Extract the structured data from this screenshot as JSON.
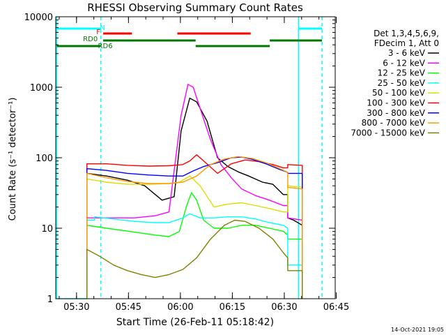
{
  "chart_data": {
    "type": "line",
    "title": "RHESSI Observing Summary Count Rates",
    "xlabel": "Start Time (26-Feb-11 05:18:42)",
    "ylabel": "Count Rate (s⁻¹ detector⁻¹)",
    "yscale": "log",
    "ylim": [
      1,
      10000
    ],
    "xlim_minutes": [
      5.3,
      86.0
    ],
    "x_ticks": [
      {
        "label": "05:30",
        "min": 11.3
      },
      {
        "label": "05:45",
        "min": 26.3
      },
      {
        "label": "06:00",
        "min": 41.3
      },
      {
        "label": "06:15",
        "min": 56.3
      },
      {
        "label": "06:30",
        "min": 71.3
      },
      {
        "label": "06:45",
        "min": 86.3
      }
    ],
    "y_ticks": [
      {
        "label": "1",
        "value": 1
      },
      {
        "label": "10",
        "value": 10
      },
      {
        "label": "100",
        "value": 100
      },
      {
        "label": "1000",
        "value": 1000
      },
      {
        "label": "10000",
        "value": 10000
      }
    ],
    "legend_header": [
      "Det 1,3,4,5,6,9,",
      "FDecim 1, Att 0"
    ],
    "legend_position": "right",
    "footer": "14-Oct-2021 19:05",
    "series": [
      {
        "name": "3 - 6 keV",
        "color": "#000000",
        "points": [
          [
            14.3,
            1
          ],
          [
            14.3,
            60
          ],
          [
            20,
            55
          ],
          [
            26,
            48
          ],
          [
            31,
            40
          ],
          [
            36,
            25
          ],
          [
            39.5,
            28
          ],
          [
            41.5,
            240
          ],
          [
            44,
            700
          ],
          [
            46,
            620
          ],
          [
            49,
            330
          ],
          [
            52,
            100
          ],
          [
            55,
            75
          ],
          [
            58,
            63
          ],
          [
            61,
            55
          ],
          [
            65,
            45
          ],
          [
            68,
            42
          ],
          [
            71,
            30
          ],
          [
            72.3,
            30
          ],
          [
            72.3,
            14
          ],
          [
            74,
            13
          ],
          [
            76.5,
            11
          ],
          [
            76.5,
            1
          ]
        ]
      },
      {
        "name": "6 - 12 keV",
        "color": "#ff00ff",
        "points": [
          [
            14.3,
            1
          ],
          [
            14.3,
            14
          ],
          [
            20,
            14
          ],
          [
            28,
            14
          ],
          [
            34,
            15
          ],
          [
            38,
            17
          ],
          [
            41.5,
            400
          ],
          [
            43.5,
            1100
          ],
          [
            45,
            1000
          ],
          [
            47,
            500
          ],
          [
            50,
            180
          ],
          [
            53,
            80
          ],
          [
            56,
            52
          ],
          [
            59,
            36
          ],
          [
            63,
            29
          ],
          [
            67,
            25
          ],
          [
            71,
            21
          ],
          [
            72.3,
            21
          ],
          [
            72.3,
            14
          ],
          [
            76.5,
            13
          ],
          [
            76.5,
            1
          ]
        ]
      },
      {
        "name": "12 - 25 keV",
        "color": "#00ff00",
        "points": [
          [
            14.3,
            1
          ],
          [
            14.3,
            11
          ],
          [
            20,
            10
          ],
          [
            28,
            8.8
          ],
          [
            34,
            8
          ],
          [
            38,
            7.6
          ],
          [
            41,
            9
          ],
          [
            43,
            20
          ],
          [
            44.5,
            32
          ],
          [
            46,
            25
          ],
          [
            48,
            13
          ],
          [
            51,
            10
          ],
          [
            55,
            10
          ],
          [
            59,
            11
          ],
          [
            63,
            11
          ],
          [
            67,
            10
          ],
          [
            71,
            9
          ],
          [
            72.3,
            8
          ],
          [
            72.3,
            7
          ],
          [
            76.5,
            7
          ],
          [
            76.5,
            1
          ]
        ]
      },
      {
        "name": "25 - 50 keV",
        "color": "#00ffff",
        "points": [
          [
            5.5,
            1
          ],
          [
            5.5,
            1
          ],
          [
            14.3,
            1
          ],
          [
            14.3,
            13
          ],
          [
            16.5,
            13
          ],
          [
            16.5,
            14.5
          ],
          [
            22,
            13.5
          ],
          [
            28,
            12.5
          ],
          [
            34,
            12
          ],
          [
            38,
            12
          ],
          [
            42,
            14
          ],
          [
            44,
            16
          ],
          [
            47,
            14
          ],
          [
            51,
            14
          ],
          [
            55,
            14.5
          ],
          [
            59,
            14.5
          ],
          [
            63,
            13.5
          ],
          [
            67,
            12
          ],
          [
            71,
            11
          ],
          [
            72.3,
            10
          ],
          [
            72.3,
            3
          ],
          [
            76.5,
            3
          ],
          [
            76.5,
            1
          ]
        ]
      },
      {
        "name": "50 - 100 keV",
        "color": "#dddd00",
        "points": [
          [
            14.3,
            1
          ],
          [
            14.3,
            50
          ],
          [
            20,
            45
          ],
          [
            26,
            42
          ],
          [
            32,
            42
          ],
          [
            38,
            43
          ],
          [
            41,
            45
          ],
          [
            44,
            55
          ],
          [
            47,
            40
          ],
          [
            51,
            20
          ],
          [
            55,
            22
          ],
          [
            59,
            23
          ],
          [
            63,
            21
          ],
          [
            67,
            19
          ],
          [
            71,
            17
          ],
          [
            72.3,
            17
          ],
          [
            72.3,
            40
          ],
          [
            76.5,
            38
          ],
          [
            76.5,
            1
          ]
        ]
      },
      {
        "name": "100 - 300 keV",
        "color": "#ff0000",
        "points": [
          [
            14.3,
            1
          ],
          [
            14.3,
            82
          ],
          [
            20,
            82
          ],
          [
            26,
            78
          ],
          [
            32,
            76
          ],
          [
            38,
            77
          ],
          [
            42,
            80
          ],
          [
            44,
            90
          ],
          [
            46,
            110
          ],
          [
            48,
            90
          ],
          [
            52,
            60
          ],
          [
            56,
            82
          ],
          [
            60,
            93
          ],
          [
            64,
            88
          ],
          [
            68,
            80
          ],
          [
            71,
            72
          ],
          [
            72.3,
            72
          ],
          [
            72.3,
            80
          ],
          [
            76.5,
            78
          ],
          [
            76.5,
            1
          ]
        ]
      },
      {
        "name": "300 - 800 keV",
        "color": "#0000ff",
        "points": [
          [
            14.3,
            1
          ],
          [
            14.3,
            70
          ],
          [
            20,
            66
          ],
          [
            26,
            60
          ],
          [
            32,
            57
          ],
          [
            38,
            55
          ],
          [
            42,
            55
          ],
          [
            45,
            65
          ],
          [
            48,
            75
          ],
          [
            52,
            85
          ],
          [
            56,
            100
          ],
          [
            59,
            102
          ],
          [
            62,
            95
          ],
          [
            66,
            82
          ],
          [
            70,
            68
          ],
          [
            72.3,
            62
          ],
          [
            72.3,
            60
          ],
          [
            76.5,
            60
          ],
          [
            76.5,
            1
          ]
        ]
      },
      {
        "name": "800 - 7000 keV",
        "color": "#ff9900",
        "points": [
          [
            14.3,
            1
          ],
          [
            14.3,
            60
          ],
          [
            20,
            52
          ],
          [
            26,
            46
          ],
          [
            32,
            43
          ],
          [
            38,
            43
          ],
          [
            42,
            45
          ],
          [
            46,
            55
          ],
          [
            50,
            80
          ],
          [
            54,
            96
          ],
          [
            58,
            104
          ],
          [
            62,
            98
          ],
          [
            66,
            85
          ],
          [
            70,
            70
          ],
          [
            72.3,
            62
          ],
          [
            72.3,
            38
          ],
          [
            76.5,
            36
          ],
          [
            76.5,
            1
          ]
        ]
      },
      {
        "name": "7000 - 15000 keV",
        "color": "#808000",
        "points": [
          [
            14.3,
            1
          ],
          [
            14.3,
            5
          ],
          [
            18,
            4
          ],
          [
            22,
            3
          ],
          [
            26,
            2.5
          ],
          [
            30,
            2.2
          ],
          [
            34,
            2
          ],
          [
            38,
            2.2
          ],
          [
            42,
            2.6
          ],
          [
            46,
            3.8
          ],
          [
            50,
            7
          ],
          [
            54,
            11
          ],
          [
            57,
            13
          ],
          [
            60,
            12.5
          ],
          [
            64,
            10
          ],
          [
            68,
            7
          ],
          [
            71,
            4.5
          ],
          [
            72.3,
            3.8
          ],
          [
            72.3,
            2.5
          ],
          [
            76.5,
            2.5
          ],
          [
            76.5,
            1
          ]
        ]
      }
    ],
    "status_bars": [
      {
        "label": "N",
        "color": "#00ffff",
        "label_at": 18.8,
        "label_row": 0,
        "segments": [
          [
            5.6,
            18.3
          ],
          [
            75.4,
            82.2
          ]
        ],
        "row": 0
      },
      {
        "label": "F",
        "color": "#ff0000",
        "label_at": 17.6,
        "label_row": 1,
        "segments": [
          [
            19.0,
            27.3
          ],
          [
            40.4,
            61.6
          ]
        ],
        "row": 1
      },
      {
        "label": "RD0",
        "color": "#007700",
        "label_at": 15.3,
        "label_row": 2,
        "segments": [
          [
            19.0,
            45.7
          ],
          [
            67.1,
            82.2
          ]
        ],
        "row": 2
      },
      {
        "label": "RD6",
        "color": "#007700",
        "label_at": 19.6,
        "label_row": 3,
        "segments": [
          [
            5.6,
            18.3
          ],
          [
            45.7,
            67.1
          ]
        ],
        "row": 3
      }
    ],
    "vertical_markers": [
      {
        "min": 5.6,
        "color": "#00ffff",
        "style": "solid"
      },
      {
        "min": 18.3,
        "color": "#00ffff",
        "style": "dashed"
      },
      {
        "min": 75.4,
        "color": "#00ffff",
        "style": "solid"
      },
      {
        "min": 82.2,
        "color": "#00ffff",
        "style": "dashed"
      }
    ]
  }
}
